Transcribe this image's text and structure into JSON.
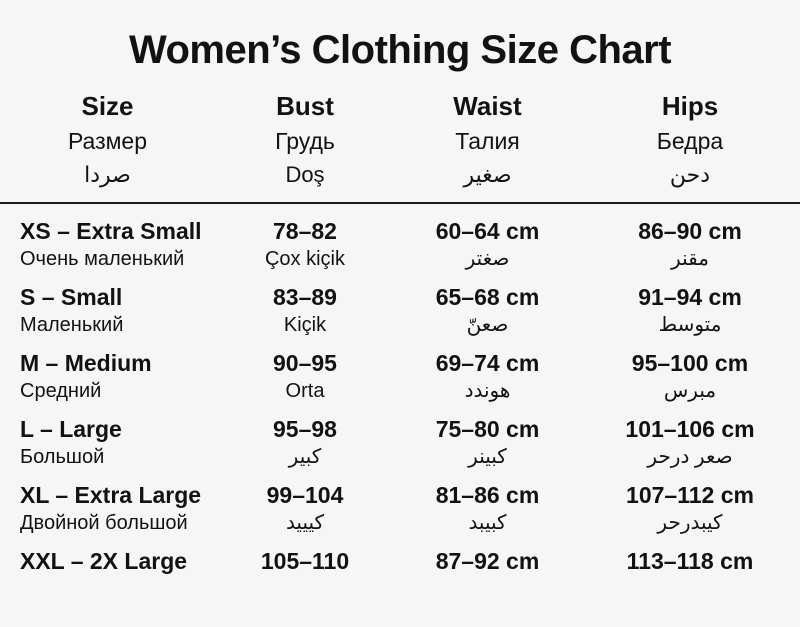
{
  "title": "Women’s Clothing Size Chart",
  "colors": {
    "background": "#f6f6f6",
    "text": "#121212",
    "divider": "#1c1c1c"
  },
  "header": {
    "columns": [
      {
        "line1": "Size",
        "line2": "Размер",
        "line3": "صردا"
      },
      {
        "line1": "Bust",
        "line2": "Грудь",
        "line3": "Doş"
      },
      {
        "line1": "Waist",
        "line2": "Талия",
        "line3": "صغير"
      },
      {
        "line1": "Hips",
        "line2": "Бедра",
        "line3": "دحن"
      }
    ]
  },
  "rows": [
    {
      "size": "XS – Extra Small",
      "size_sub": "Очень маленький",
      "bust": "78–82",
      "bust_sub": "Çox kiçik",
      "waist": "60–64 cm",
      "waist_sub": "صغتر",
      "hips": "86–90 cm",
      "hips_sub": "مقنر"
    },
    {
      "size": "S – Small",
      "size_sub": "Маленький",
      "bust": "83–89",
      "bust_sub": "Kiçik",
      "waist": "65–68 cm",
      "waist_sub": "صعنّ",
      "hips": "91–94 cm",
      "hips_sub": "متوسط"
    },
    {
      "size": "M – Medium",
      "size_sub": "Средний",
      "bust": "90–95",
      "bust_sub": "Orta",
      "waist": "69–74 cm",
      "waist_sub": "هوندد",
      "hips": "95–100 cm",
      "hips_sub": "مبرس"
    },
    {
      "size": "L – Large",
      "size_sub": "Большой",
      "bust": "95–98",
      "bust_sub": "كبير",
      "waist": "75–80 cm",
      "waist_sub": "كبينر",
      "hips": "101–106 cm",
      "hips_sub": "صعر درحر"
    },
    {
      "size": "XL – Extra Large",
      "size_sub": "Двойной большой",
      "bust": "99–104",
      "bust_sub": "كيييد",
      "waist": "81–86 cm",
      "waist_sub": "كبيبد",
      "hips": "107–112 cm",
      "hips_sub": "كيبدرحر"
    },
    {
      "size": "XXL – 2X Large",
      "bust": "105–110",
      "waist": "87–92 cm",
      "hips": "113–118 cm"
    }
  ]
}
